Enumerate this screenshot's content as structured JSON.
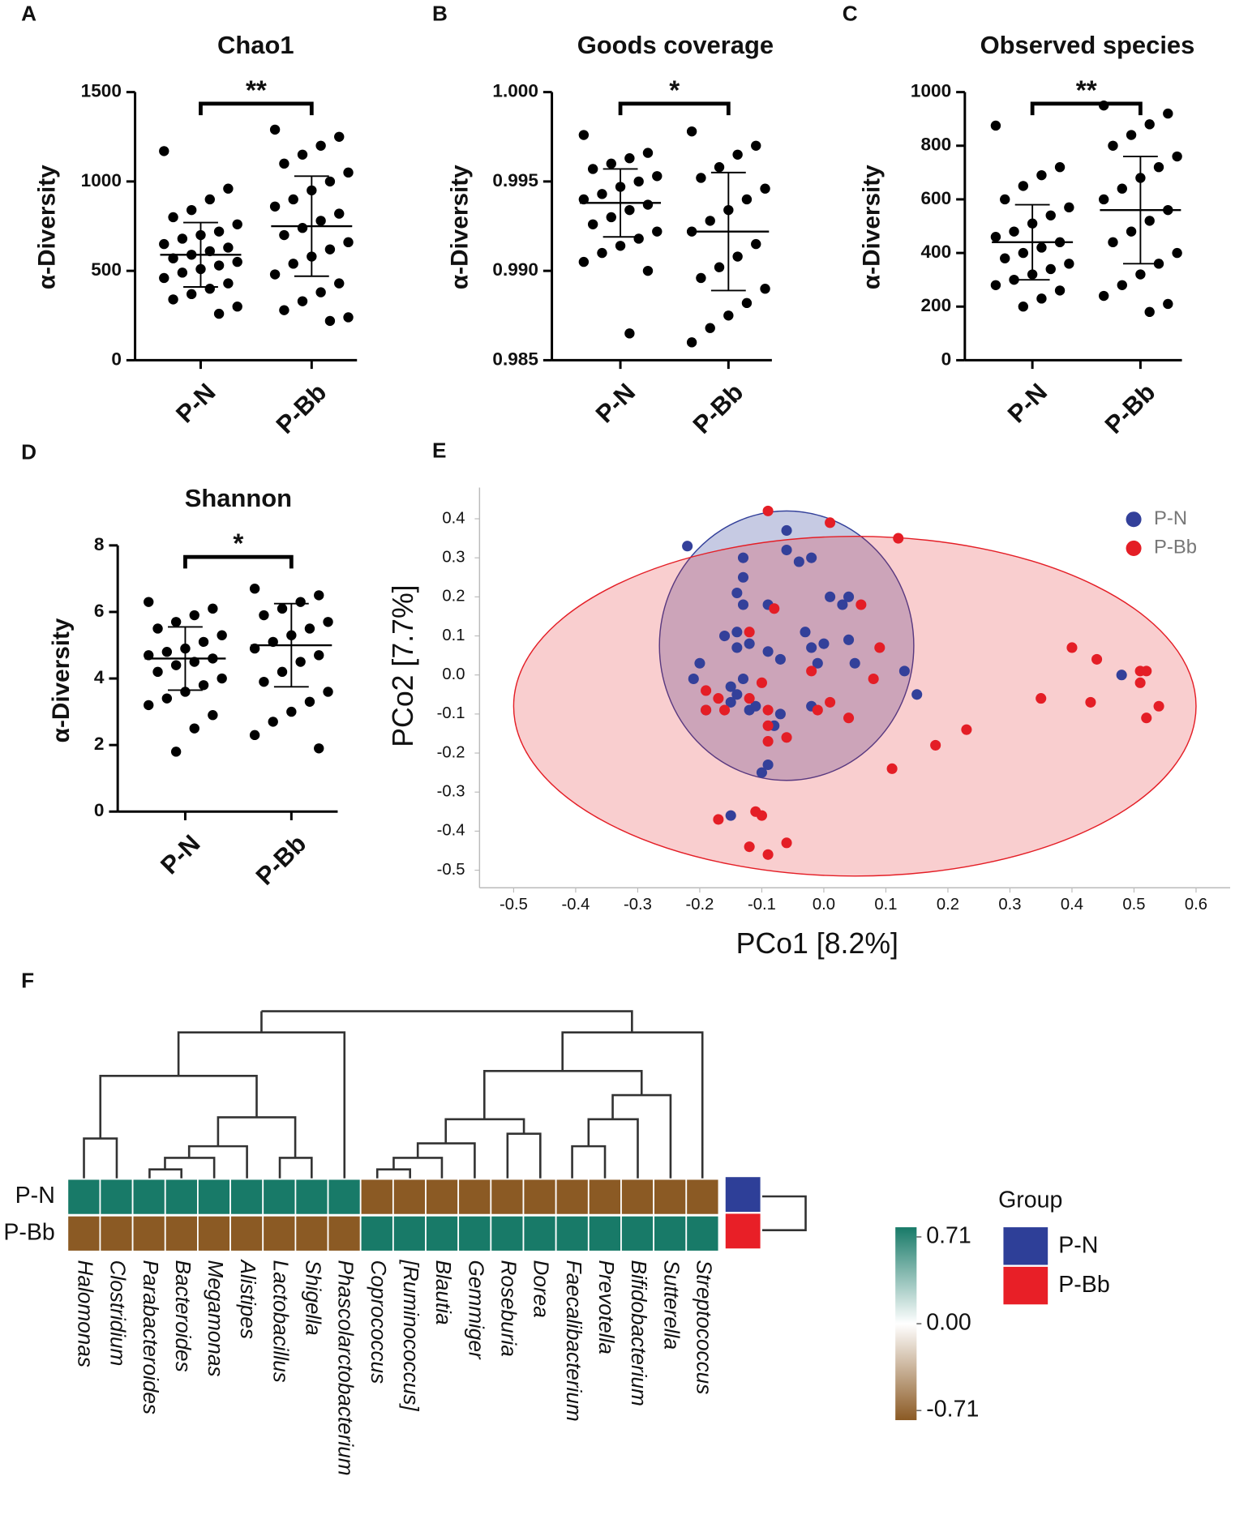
{
  "chart_data": [
    {
      "type": "dotplot",
      "panel": "A",
      "title": "Chao1",
      "ylabel": "α-Diversity",
      "categories": [
        "P-N",
        "P-Bb"
      ],
      "color": "#000000",
      "groups": [
        {
          "values": [
            1170,
            960,
            900,
            840,
            800,
            760,
            720,
            700,
            680,
            650,
            630,
            610,
            590,
            570,
            550,
            530,
            510,
            490,
            460,
            430,
            400,
            370,
            340,
            300,
            260
          ],
          "mean": 590,
          "sd": 180
        },
        {
          "values": [
            1290,
            1250,
            1200,
            1150,
            1100,
            1050,
            1000,
            950,
            900,
            860,
            820,
            780,
            740,
            700,
            660,
            620,
            580,
            540,
            480,
            430,
            380,
            330,
            280,
            240,
            220
          ],
          "mean": 750,
          "sd": 280
        }
      ],
      "ylim": [
        0,
        1500
      ],
      "yticks": [
        0,
        500,
        1000,
        1500
      ],
      "significance": "**"
    },
    {
      "type": "dotplot",
      "panel": "B",
      "title": "Goods coverage",
      "ylabel": "α-Diversity",
      "categories": [
        "P-N",
        "P-Bb"
      ],
      "color": "#000000",
      "groups": [
        {
          "values": [
            0.9976,
            0.9966,
            0.9963,
            0.996,
            0.9957,
            0.9953,
            0.995,
            0.9947,
            0.9943,
            0.994,
            0.9937,
            0.9934,
            0.993,
            0.9926,
            0.9922,
            0.9918,
            0.9914,
            0.991,
            0.9905,
            0.99,
            0.9865
          ],
          "mean": 0.9938,
          "sd": 0.0019
        },
        {
          "values": [
            0.9978,
            0.997,
            0.9965,
            0.9958,
            0.9952,
            0.9946,
            0.994,
            0.9934,
            0.9928,
            0.9922,
            0.9915,
            0.9908,
            0.9902,
            0.9896,
            0.989,
            0.9882,
            0.9875,
            0.9868,
            0.986
          ],
          "mean": 0.9922,
          "sd": 0.0033
        }
      ],
      "ylim": [
        0.985,
        1.0
      ],
      "yticks": [
        0.985,
        {
          "value": 0.99,
          "label": "0.990"
        },
        0.995,
        {
          "value": 1.0,
          "label": "1.000"
        }
      ],
      "significance": "*"
    },
    {
      "type": "dotplot",
      "panel": "C",
      "title": "Observed species",
      "ylabel": "α-Diversity",
      "categories": [
        "P-N",
        "P-Bb"
      ],
      "color": "#000000",
      "groups": [
        {
          "values": [
            875,
            720,
            690,
            650,
            600,
            570,
            540,
            510,
            480,
            460,
            440,
            420,
            400,
            380,
            360,
            340,
            320,
            300,
            280,
            260,
            230,
            200
          ],
          "mean": 440,
          "sd": 140
        },
        {
          "values": [
            950,
            920,
            880,
            840,
            800,
            760,
            720,
            680,
            640,
            600,
            560,
            520,
            480,
            440,
            400,
            360,
            320,
            280,
            240,
            210,
            180
          ],
          "mean": 560,
          "sd": 200
        }
      ],
      "ylim": [
        0,
        1000
      ],
      "yticks": [
        0,
        200,
        400,
        600,
        800,
        1000
      ],
      "significance": "**"
    },
    {
      "type": "dotplot",
      "panel": "D",
      "title": "Shannon",
      "ylabel": "α-Diversity",
      "categories": [
        "P-N",
        "P-Bb"
      ],
      "color": "#000000",
      "groups": [
        {
          "values": [
            6.3,
            6.1,
            5.9,
            5.7,
            5.5,
            5.3,
            5.1,
            4.9,
            4.8,
            4.7,
            4.6,
            4.5,
            4.4,
            4.2,
            4.0,
            3.8,
            3.6,
            3.4,
            3.2,
            2.9,
            2.5,
            1.8
          ],
          "mean": 4.6,
          "sd": 0.95
        },
        {
          "values": [
            6.7,
            6.5,
            6.3,
            6.1,
            5.9,
            5.7,
            5.5,
            5.3,
            5.1,
            4.9,
            4.7,
            4.5,
            4.2,
            3.9,
            3.6,
            3.3,
            3.0,
            2.7,
            2.3,
            1.9
          ],
          "mean": 5.0,
          "sd": 1.25
        }
      ],
      "ylim": [
        0,
        8
      ],
      "yticks": [
        0,
        2,
        4,
        6,
        8
      ],
      "significance": "*"
    },
    {
      "type": "scatter",
      "panel": "E",
      "xlabel": "PCo1 [8.2%]",
      "ylabel": "PCo2 [7.7%]",
      "legend": "upper right",
      "xlim": [
        -0.555,
        0.655
      ],
      "ylim": [
        -0.545,
        0.48
      ],
      "xticks": [
        -0.5,
        -0.4,
        -0.3,
        -0.2,
        -0.1,
        {
          "value": 0,
          "label": "0.0"
        },
        0.1,
        0.2,
        0.3,
        0.4,
        0.5,
        0.6
      ],
      "yticks": [
        0.4,
        0.3,
        0.2,
        0.1,
        {
          "value": 0,
          "label": "0.0"
        },
        -0.1,
        -0.2,
        -0.3,
        -0.4,
        -0.5
      ],
      "series": [
        {
          "name": "P-N",
          "color": "#33409a",
          "ellipse": {
            "cx": -0.06,
            "cy": 0.075,
            "rx": 0.205,
            "ry": 0.345
          },
          "x": [
            -0.22,
            -0.06,
            -0.06,
            -0.04,
            -0.02,
            -0.13,
            -0.13,
            -0.14,
            -0.13,
            -0.09,
            0.01,
            0.04,
            0.03,
            -0.16,
            -0.14,
            -0.12,
            -0.14,
            -0.09,
            -0.02,
            0.0,
            0.04,
            -0.03,
            -0.07,
            -0.01,
            0.05,
            -0.2,
            -0.21,
            -0.19,
            -0.15,
            -0.14,
            -0.13,
            -0.12,
            -0.15,
            -0.11,
            -0.08,
            -0.07,
            -0.02,
            0.13,
            0.15,
            -0.1,
            -0.09,
            -0.15,
            0.48
          ],
          "y": [
            0.33,
            0.37,
            0.32,
            0.29,
            0.3,
            0.3,
            0.25,
            0.21,
            0.18,
            0.18,
            0.2,
            0.2,
            0.18,
            0.1,
            0.11,
            0.08,
            0.07,
            0.06,
            0.07,
            0.08,
            0.09,
            0.11,
            0.04,
            0.03,
            0.03,
            0.03,
            -0.01,
            -0.09,
            -0.03,
            -0.05,
            -0.01,
            -0.09,
            -0.07,
            -0.08,
            -0.13,
            -0.1,
            -0.08,
            0.01,
            -0.05,
            -0.25,
            -0.23,
            -0.36,
            0.0
          ]
        },
        {
          "name": "P-Bb",
          "color": "#e41e26",
          "ellipse": {
            "cx": 0.05,
            "cy": -0.08,
            "rx": 0.55,
            "ry": 0.435
          },
          "x": [
            -0.09,
            0.01,
            0.12,
            -0.08,
            0.06,
            -0.12,
            -0.02,
            0.09,
            -0.19,
            -0.17,
            -0.19,
            -0.16,
            -0.12,
            -0.1,
            -0.09,
            -0.09,
            -0.09,
            -0.06,
            -0.01,
            0.01,
            0.04,
            0.08,
            0.11,
            0.18,
            0.23,
            0.35,
            0.4,
            0.44,
            0.43,
            0.51,
            0.52,
            0.51,
            0.54,
            0.52,
            -0.17,
            -0.11,
            -0.1,
            -0.12,
            -0.09,
            -0.06
          ],
          "y": [
            0.42,
            0.39,
            0.35,
            0.17,
            0.18,
            0.11,
            0.01,
            0.07,
            -0.04,
            -0.06,
            -0.09,
            -0.09,
            -0.06,
            -0.02,
            -0.09,
            -0.13,
            -0.17,
            -0.16,
            -0.09,
            -0.07,
            -0.11,
            -0.01,
            -0.24,
            -0.18,
            -0.14,
            -0.06,
            0.07,
            0.04,
            -0.07,
            0.01,
            0.01,
            -0.02,
            -0.08,
            -0.11,
            -0.37,
            -0.35,
            -0.36,
            -0.44,
            -0.46,
            -0.43
          ]
        }
      ]
    },
    {
      "type": "heatmap",
      "panel": "F",
      "rows": [
        "P-N",
        "P-Bb"
      ],
      "columns": [
        "Halomonas",
        "Clostridium",
        "Parabacteroides",
        "Bacteroides",
        "Megamonas",
        "Alistipes",
        "Lactobacillus",
        "Shigella",
        "Phascolarctobacterium",
        "Coprococcus",
        "[Ruminococcus]",
        "Blautia",
        "Gemmiger",
        "Roseburia",
        "Dorea",
        "Faecalibacterium",
        "Prevotella",
        "Bifidobacterium",
        "Sutterella",
        "Streptococcus"
      ],
      "values": [
        [
          0.71,
          0.71,
          0.71,
          0.71,
          0.71,
          0.71,
          0.71,
          0.71,
          0.71,
          -0.71,
          -0.71,
          -0.71,
          -0.71,
          -0.71,
          -0.71,
          -0.71,
          -0.71,
          -0.71,
          -0.71,
          -0.71
        ],
        [
          -0.71,
          -0.71,
          -0.71,
          -0.71,
          -0.71,
          -0.71,
          -0.71,
          -0.71,
          -0.71,
          0.71,
          0.71,
          0.71,
          0.71,
          0.71,
          0.71,
          0.71,
          0.71,
          0.71,
          0.71,
          0.71
        ]
      ],
      "clim": [
        -0.71,
        0.71
      ],
      "colors": {
        "low": "#8b5a24",
        "mid": "#ffffff",
        "high": "#187a68"
      },
      "cticks": [
        0.71,
        {
          "value": 0,
          "label": "0.00"
        },
        -0.71
      ],
      "group_title": "Group",
      "groups": [
        {
          "name": "P-N",
          "color": "#2e3f98"
        },
        {
          "name": "P-Bb",
          "color": "#e81f27"
        }
      ]
    }
  ]
}
